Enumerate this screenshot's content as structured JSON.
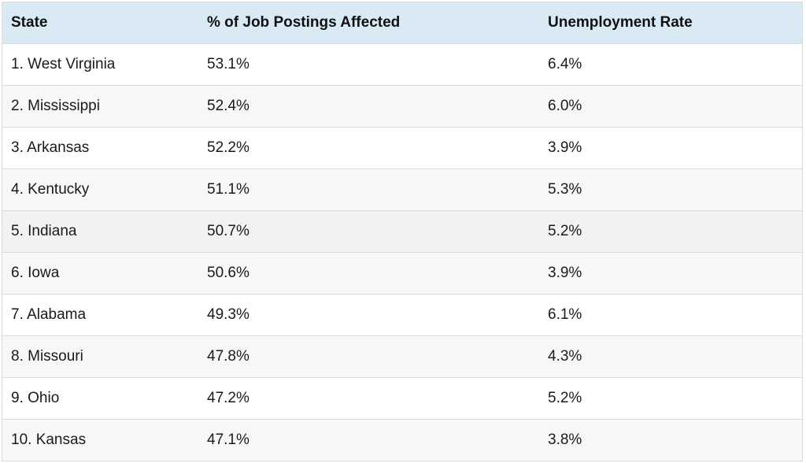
{
  "chart_data": {
    "type": "table",
    "columns": [
      "State",
      "% of Job Postings Affected",
      "Unemployment Rate"
    ],
    "rows": [
      [
        "1. West Virginia",
        "53.1%",
        "6.4%"
      ],
      [
        "2. Mississippi",
        "52.4%",
        "6.0%"
      ],
      [
        "3. Arkansas",
        "52.2%",
        "3.9%"
      ],
      [
        "4. Kentucky",
        "51.1%",
        "5.3%"
      ],
      [
        "5. Indiana",
        "50.7%",
        "5.2%"
      ],
      [
        "6. Iowa",
        "50.6%",
        "3.9%"
      ],
      [
        "7. Alabama",
        "49.3%",
        "6.1%"
      ],
      [
        "8. Missouri",
        "47.8%",
        "4.3%"
      ],
      [
        "9. Ohio",
        "47.2%",
        "5.2%"
      ],
      [
        "10. Kansas",
        "47.1%",
        "3.8%"
      ]
    ]
  },
  "colors": {
    "header_background": "#d9eaf5",
    "row_border": "#dcdcdc"
  }
}
